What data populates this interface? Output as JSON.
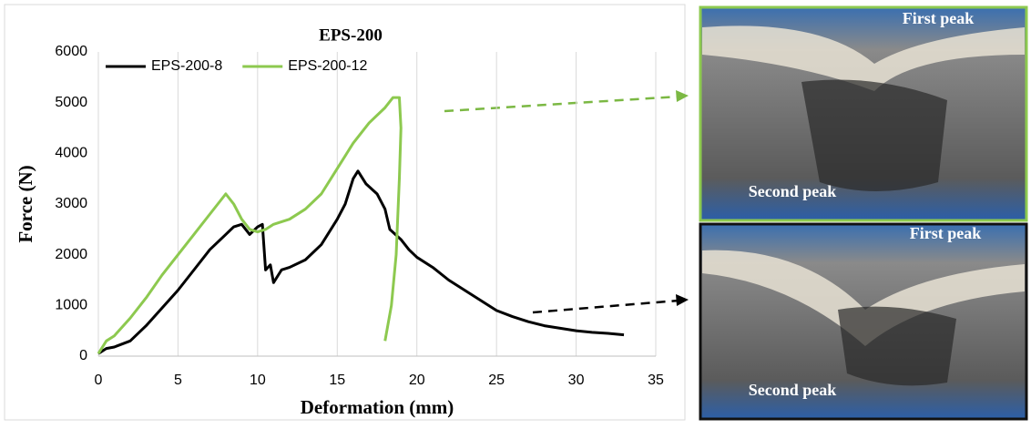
{
  "chart_data": {
    "type": "line",
    "title": "EPS-200",
    "x_label": "Deformation (mm)",
    "y_label": "Force (N)",
    "xlim": [
      0,
      35
    ],
    "xticks": [
      0,
      5,
      10,
      15,
      20,
      25,
      30,
      35
    ],
    "ylim": [
      0,
      6000
    ],
    "yticks": [
      0,
      1000,
      2000,
      3000,
      4000,
      5000,
      6000
    ],
    "grid": "x",
    "legend": "top-left",
    "series": [
      {
        "name": "EPS-200-8",
        "color": "#000000",
        "x": [
          0,
          0.5,
          1,
          2,
          3,
          4,
          5,
          6,
          7,
          8,
          8.5,
          9,
          9.5,
          10,
          10.3,
          10.5,
          10.8,
          11,
          11.5,
          12,
          13,
          14,
          15,
          15.5,
          16,
          16.3,
          16.8,
          17.5,
          18,
          18.3,
          19,
          19.5,
          20,
          21,
          22,
          23,
          24,
          25,
          26,
          27,
          28,
          29,
          30,
          31,
          32,
          33
        ],
        "values": [
          50,
          150,
          180,
          300,
          600,
          950,
          1300,
          1700,
          2100,
          2400,
          2550,
          2600,
          2400,
          2550,
          2600,
          1700,
          1800,
          1450,
          1700,
          1750,
          1900,
          2200,
          2700,
          3000,
          3500,
          3650,
          3400,
          3200,
          2900,
          2500,
          2300,
          2100,
          1950,
          1750,
          1500,
          1300,
          1100,
          900,
          780,
          680,
          600,
          550,
          500,
          470,
          450,
          420
        ]
      },
      {
        "name": "EPS-200-12",
        "color": "#8dc94f",
        "x": [
          0,
          0.5,
          1,
          2,
          3,
          4,
          5,
          6,
          7,
          8,
          8.5,
          9,
          9.5,
          10,
          10.5,
          11,
          12,
          13,
          14,
          15,
          16,
          17,
          18,
          18.5,
          18.9,
          19,
          18.9,
          18.7,
          18.4,
          18
        ],
        "values": [
          50,
          300,
          400,
          750,
          1150,
          1600,
          2000,
          2400,
          2800,
          3200,
          3000,
          2700,
          2500,
          2450,
          2500,
          2600,
          2700,
          2900,
          3200,
          3700,
          4200,
          4600,
          4900,
          5100,
          5100,
          4500,
          3500,
          2000,
          1000,
          300
        ]
      }
    ]
  },
  "images": [
    {
      "labels": [
        "First peak",
        "Second peak"
      ]
    },
    {
      "labels": [
        "First peak",
        "Second peak"
      ]
    }
  ]
}
